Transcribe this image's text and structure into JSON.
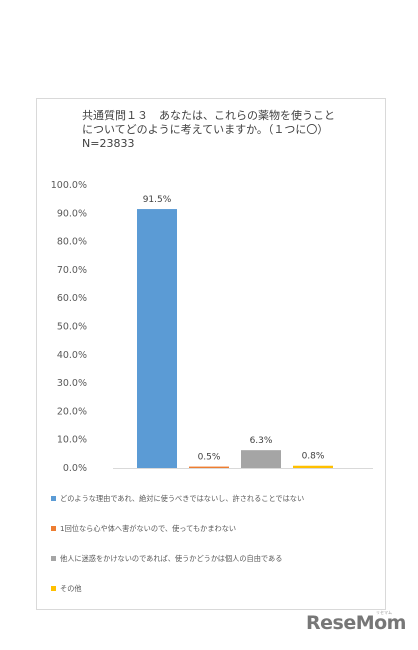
{
  "chart_data": {
    "type": "bar",
    "title_lines": [
      "共通質問１３　あなたは、これらの薬物を使うこと",
      "についてどのように考えていますか。（１つに〇）",
      "N=23833"
    ],
    "categories": [
      "どのような理由であれ、絶対に使うべきではないし、許されることではない",
      "1回位なら心や体へ害がないので、使ってもかまわない",
      "他人に迷惑をかけないのであれば、使うかどうかは個人の自由である",
      "その他"
    ],
    "values": [
      91.5,
      0.5,
      6.3,
      0.8
    ],
    "value_labels": [
      "91.5%",
      "0.5%",
      "6.3%",
      "0.8%"
    ],
    "colors": [
      "#5b9bd5",
      "#ed7d31",
      "#a5a5a5",
      "#ffc000"
    ],
    "ylim": [
      0,
      100
    ],
    "yticks": [
      "0.0%",
      "10.0%",
      "20.0%",
      "30.0%",
      "40.0%",
      "50.0%",
      "60.0%",
      "70.0%",
      "80.0%",
      "90.0%",
      "100.0%"
    ],
    "grid": false,
    "legend_position": "bottom"
  },
  "watermark": {
    "text": "ReseMom",
    "sub": "リセマム"
  }
}
